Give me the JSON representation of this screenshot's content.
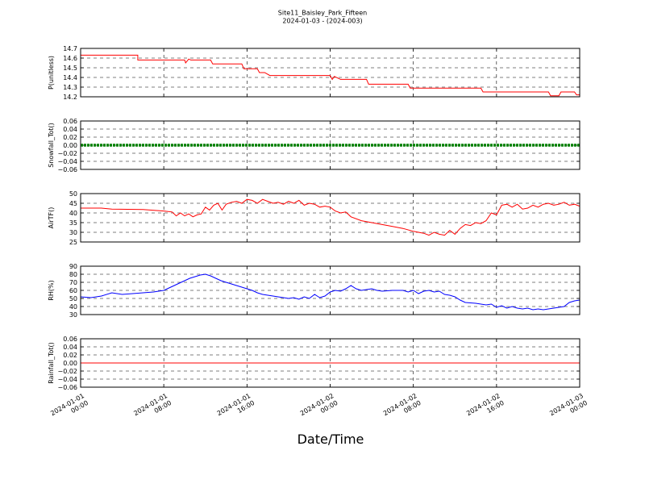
{
  "chart_data": {
    "title": "Site11_Baisley_Park_Fifteen",
    "subtitle": "2024-01-03 - (2024-003)",
    "xlabel": "Date/Time",
    "x_ticks": [
      {
        "line1": "2024-01-01",
        "line2": "00:00",
        "hours": 0
      },
      {
        "line1": "2024-01-01",
        "line2": "08:00",
        "hours": 8
      },
      {
        "line1": "2024-01-01",
        "line2": "16:00",
        "hours": 16
      },
      {
        "line1": "2024-01-02",
        "line2": "00:00",
        "hours": 24
      },
      {
        "line1": "2024-01-02",
        "line2": "08:00",
        "hours": 32
      },
      {
        "line1": "2024-01-02",
        "line2": "16:00",
        "hours": 40
      },
      {
        "line1": "2024-01-03",
        "line2": "00:00",
        "hours": 48
      }
    ],
    "panels": [
      {
        "ylabel": "P(unitless)",
        "type": "line",
        "color": "#ff0000",
        "ylim": [
          14.2,
          14.7
        ],
        "yticks": [
          "14.2",
          "14.3",
          "14.4",
          "14.5",
          "14.6",
          "14.7"
        ],
        "yticks_values": [
          14.2,
          14.3,
          14.4,
          14.5,
          14.6,
          14.7
        ],
        "x": [
          0,
          5.5,
          5.5,
          10,
          10.1,
          10.4,
          10.6,
          12.5,
          12.7,
          12.9,
          15.5,
          15.7,
          17,
          17.2,
          17.7,
          18.2,
          18.4,
          24,
          24.2,
          24.4,
          25,
          27.5,
          27.7,
          31.5,
          31.7,
          38.5,
          38.7,
          45,
          45.2,
          46,
          46.2,
          47.5,
          47.7,
          48
        ],
        "values": [
          14.63,
          14.63,
          14.58,
          14.58,
          14.55,
          14.59,
          14.58,
          14.58,
          14.54,
          14.54,
          14.54,
          14.49,
          14.49,
          14.45,
          14.45,
          14.42,
          14.42,
          14.42,
          14.38,
          14.41,
          14.38,
          14.38,
          14.33,
          14.33,
          14.29,
          14.29,
          14.25,
          14.25,
          14.21,
          14.21,
          14.25,
          14.25,
          14.22,
          14.22
        ]
      },
      {
        "ylabel": "Snowfall_Tot()",
        "type": "line",
        "color": "#008000",
        "ylim": [
          -0.06,
          0.06
        ],
        "yticks": [
          "−0.06",
          "−0.04",
          "−0.02",
          "0.00",
          "0.02",
          "0.04",
          "0.06"
        ],
        "yticks_values": [
          -0.06,
          -0.04,
          -0.02,
          0,
          0.02,
          0.04,
          0.06
        ],
        "x": [
          0,
          48
        ],
        "values": [
          0,
          0
        ]
      },
      {
        "ylabel": "AirTF()",
        "type": "line",
        "color": "#ff0000",
        "ylim": [
          25,
          50
        ],
        "yticks": [
          "25",
          "30",
          "35",
          "40",
          "45",
          "50"
        ],
        "yticks_values": [
          25,
          30,
          35,
          40,
          45,
          50
        ],
        "x": [
          0,
          2,
          3,
          6,
          8,
          8.8,
          9.2,
          9.6,
          10,
          10.4,
          10.8,
          11.2,
          11.6,
          12,
          12.4,
          12.8,
          13.2,
          13.6,
          14,
          14.5,
          15,
          15.5,
          16,
          16.5,
          17,
          17.5,
          18,
          18.5,
          19,
          19.5,
          20,
          20.5,
          21,
          21.5,
          22,
          22.5,
          23,
          23.5,
          24,
          24.5,
          25,
          25.5,
          26,
          27,
          28,
          29,
          30,
          31,
          32,
          33,
          33.5,
          34,
          34.5,
          35,
          35.5,
          36,
          36.5,
          37,
          37.5,
          38,
          38.5,
          39,
          39.5,
          40,
          40.5,
          41,
          41.5,
          42,
          42.5,
          43,
          43.5,
          44,
          44.5,
          45,
          45.5,
          46,
          46.5,
          47,
          47.5,
          48
        ],
        "values": [
          42.5,
          42.5,
          42,
          41.8,
          41,
          40.5,
          38.5,
          40,
          38.5,
          39.5,
          38,
          39,
          39.5,
          43,
          41.5,
          44,
          45,
          41.5,
          44.5,
          45.5,
          46,
          45,
          47,
          46.5,
          45,
          47,
          46,
          45,
          45.5,
          44.5,
          46,
          45,
          46.5,
          44,
          45,
          44.5,
          43,
          43.5,
          43,
          41,
          40,
          40.5,
          38,
          36,
          35,
          34,
          33,
          32,
          30.5,
          29.5,
          28.5,
          30,
          29,
          28.5,
          31,
          29,
          32,
          34,
          33.5,
          35,
          34.5,
          36,
          40,
          39,
          44,
          44.5,
          43,
          44.5,
          42,
          42.5,
          44,
          43,
          44.5,
          45,
          44,
          44.5,
          45.5,
          44,
          44.5,
          43.5
        ]
      },
      {
        "ylabel": "RH(%)",
        "type": "line",
        "color": "#0000ff",
        "ylim": [
          30,
          90
        ],
        "yticks": [
          "30",
          "40",
          "50",
          "60",
          "70",
          "80",
          "90"
        ],
        "yticks_values": [
          30,
          40,
          50,
          60,
          70,
          80,
          90
        ],
        "x": [
          0,
          1,
          2,
          3,
          4,
          5,
          6,
          7,
          8,
          8.5,
          9,
          9.5,
          10,
          10.5,
          11,
          11.5,
          12,
          12.5,
          13,
          13.5,
          14,
          14.5,
          15,
          15.5,
          16,
          16.5,
          17,
          17.5,
          18,
          18.5,
          19,
          19.5,
          20,
          20.5,
          21,
          21.5,
          22,
          22.5,
          23,
          23.5,
          24,
          24.5,
          25,
          25.5,
          26,
          26.5,
          27,
          27.5,
          28,
          28.5,
          29,
          30,
          31,
          31.5,
          32,
          32.5,
          33,
          33.5,
          34,
          34.5,
          35,
          35.5,
          36,
          36.5,
          37,
          38,
          39,
          39.5,
          40,
          40.5,
          41,
          41.5,
          42,
          42.5,
          43,
          43.5,
          44,
          44.5,
          45,
          45.5,
          46,
          46.5,
          47,
          47.5,
          48
        ],
        "values": [
          52,
          51,
          53,
          57,
          55,
          56,
          57,
          58,
          60,
          63,
          66,
          69,
          72,
          75,
          77,
          79,
          80,
          78,
          75,
          72,
          70,
          68,
          66,
          64,
          62,
          60,
          57,
          55,
          54,
          53,
          52,
          51,
          50,
          51,
          49,
          52,
          50,
          55,
          51,
          53,
          58,
          60,
          59,
          62,
          66,
          62,
          60,
          61,
          62,
          60,
          59,
          60,
          60,
          58,
          60,
          56,
          59,
          60,
          58,
          59,
          55,
          54,
          52,
          48,
          45,
          44,
          42,
          43,
          39,
          41,
          38,
          40,
          38,
          37,
          38,
          36,
          37,
          36,
          37,
          38,
          39,
          40,
          45,
          47,
          48
        ]
      },
      {
        "ylabel": "Rainfall_Tot()",
        "type": "line",
        "color": "#ff0000",
        "ylim": [
          -0.06,
          0.06
        ],
        "yticks": [
          "−0.06",
          "−0.04",
          "−0.02",
          "0.00",
          "0.02",
          "0.04",
          "0.06"
        ],
        "yticks_values": [
          -0.06,
          -0.04,
          -0.02,
          0,
          0.02,
          0.04,
          0.06
        ],
        "x": [
          0,
          48
        ],
        "values": [
          0,
          0
        ]
      }
    ]
  }
}
